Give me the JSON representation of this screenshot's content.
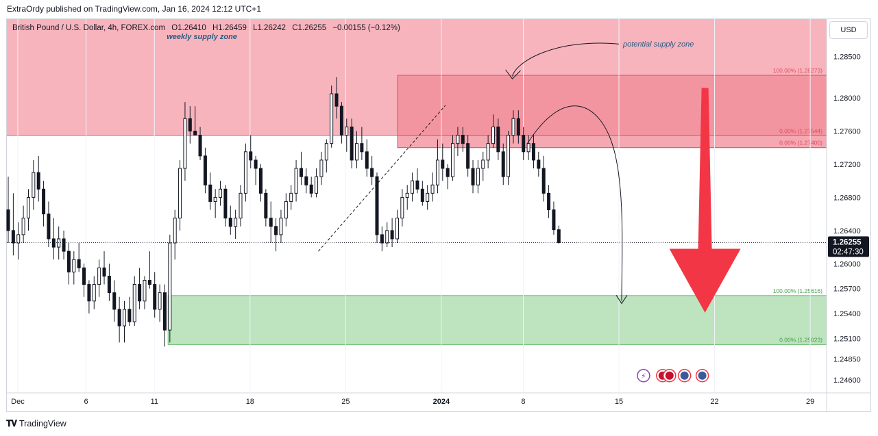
{
  "header": {
    "published_text": "ExtraOrdy published on TradingView.com, Jan 16, 2024 12:12 UTC+1"
  },
  "legend": {
    "symbol": "British Pound / U.S. Dollar, 4h, FOREX.com",
    "open": "O1.26410",
    "high": "H1.26459",
    "low": "L1.26242",
    "close": "C1.26255",
    "change": "−0.00155 (−0.12%)"
  },
  "currency_button": "USD",
  "footer": {
    "brand": "TradingView"
  },
  "chart_data": {
    "type": "candlestick",
    "symbol": "GBPUSD",
    "timeframe": "4h",
    "ylim": [
      1.2445,
      1.2895
    ],
    "y_ticks": [
      "1.28500",
      "1.28000",
      "1.27600",
      "1.27200",
      "1.26800",
      "1.26400",
      "1.26000",
      "1.25700",
      "1.25400",
      "1.25100",
      "1.24850",
      "1.24600"
    ],
    "y_tick_values": [
      1.285,
      1.28,
      1.276,
      1.272,
      1.268,
      1.264,
      1.26,
      1.257,
      1.254,
      1.251,
      1.2485,
      1.246
    ],
    "x_tick_labels": [
      "Dec",
      "6",
      "11",
      "18",
      "25",
      "2024",
      "8",
      "15",
      "22",
      "29"
    ],
    "x_tick_days": [
      1,
      6,
      11,
      18,
      25,
      32,
      38,
      45,
      52,
      59
    ],
    "x_range_days": [
      0.2,
      60.2
    ],
    "current_price": {
      "value": 1.26255,
      "label": "1.26255",
      "countdown": "02:47:30"
    },
    "zones": [
      {
        "name": "weekly supply zone",
        "color": "#f7b4bd",
        "from": 1.2755,
        "to": 1.2905,
        "x_from": 0.2,
        "x_to": 60.2,
        "labels": []
      },
      {
        "name": "potential supply zone",
        "color": "#f28b97",
        "from": 1.274,
        "to": 1.28273,
        "x_from": 28.8,
        "x_to": 60.2,
        "labels": [
          "100.00% (1.28273)",
          "0.00% (1.27544)",
          "0.00% (1.27400)"
        ],
        "label_values": [
          1.28273,
          1.27544,
          1.274
        ]
      },
      {
        "name": "demand zone",
        "color": "#bde3bf",
        "from": 1.25023,
        "to": 1.25616,
        "x_from": 12.0,
        "x_to": 60.2,
        "labels": [
          "100.00% (1.25616)",
          "0.00% (1.25023)"
        ],
        "label_values": [
          1.25616,
          1.25023
        ]
      }
    ],
    "annotations": [
      "weekly supply zone",
      "potential supply zone"
    ],
    "candles": [
      [
        1.2665,
        1.2705,
        1.2625,
        1.264
      ],
      [
        1.264,
        1.2685,
        1.261,
        1.2625
      ],
      [
        1.2625,
        1.265,
        1.2605,
        1.2635
      ],
      [
        1.2635,
        1.267,
        1.2625,
        1.2655
      ],
      [
        1.2655,
        1.269,
        1.264,
        1.268
      ],
      [
        1.268,
        1.2725,
        1.2665,
        1.271
      ],
      [
        1.271,
        1.273,
        1.2675,
        1.269
      ],
      [
        1.269,
        1.27,
        1.2645,
        1.266
      ],
      [
        1.266,
        1.2675,
        1.262,
        1.263
      ],
      [
        1.263,
        1.2655,
        1.2605,
        1.262
      ],
      [
        1.262,
        1.2645,
        1.2605,
        1.263
      ],
      [
        1.263,
        1.264,
        1.2605,
        1.2615
      ],
      [
        1.2615,
        1.2625,
        1.2575,
        1.259
      ],
      [
        1.259,
        1.2615,
        1.2575,
        1.2605
      ],
      [
        1.2605,
        1.2625,
        1.259,
        1.2595
      ],
      [
        1.2595,
        1.26,
        1.256,
        1.2575
      ],
      [
        1.2575,
        1.258,
        1.254,
        1.2555
      ],
      [
        1.2555,
        1.2585,
        1.2545,
        1.2575
      ],
      [
        1.2575,
        1.2605,
        1.256,
        1.2595
      ],
      [
        1.2595,
        1.2615,
        1.2575,
        1.2585
      ],
      [
        1.2585,
        1.26,
        1.2555,
        1.2565
      ],
      [
        1.2565,
        1.258,
        1.253,
        1.2545
      ],
      [
        1.2545,
        1.256,
        1.2505,
        1.2525
      ],
      [
        1.2525,
        1.2555,
        1.2505,
        1.2545
      ],
      [
        1.2545,
        1.256,
        1.2525,
        1.253
      ],
      [
        1.253,
        1.2585,
        1.2525,
        1.2575
      ],
      [
        1.2575,
        1.2595,
        1.2545,
        1.2555
      ],
      [
        1.2555,
        1.2585,
        1.2545,
        1.258
      ],
      [
        1.258,
        1.2615,
        1.257,
        1.2575
      ],
      [
        1.2575,
        1.259,
        1.2535,
        1.2545
      ],
      [
        1.2545,
        1.2575,
        1.253,
        1.2565
      ],
      [
        1.2565,
        1.2575,
        1.25,
        1.252
      ],
      [
        1.252,
        1.2635,
        1.2505,
        1.2625
      ],
      [
        1.2625,
        1.2665,
        1.2605,
        1.2655
      ],
      [
        1.2655,
        1.2725,
        1.264,
        1.2715
      ],
      [
        1.2715,
        1.2795,
        1.27,
        1.2775
      ],
      [
        1.2775,
        1.279,
        1.2745,
        1.276
      ],
      [
        1.276,
        1.279,
        1.2755,
        1.2755
      ],
      [
        1.2755,
        1.2765,
        1.2725,
        1.273
      ],
      [
        1.273,
        1.274,
        1.2685,
        1.2695
      ],
      [
        1.2695,
        1.271,
        1.2665,
        1.2675
      ],
      [
        1.2675,
        1.269,
        1.2655,
        1.268
      ],
      [
        1.268,
        1.27,
        1.267,
        1.269
      ],
      [
        1.269,
        1.2695,
        1.2645,
        1.2655
      ],
      [
        1.2655,
        1.267,
        1.2635,
        1.2645
      ],
      [
        1.2645,
        1.2665,
        1.263,
        1.2655
      ],
      [
        1.2655,
        1.2695,
        1.2645,
        1.2685
      ],
      [
        1.2685,
        1.2745,
        1.2675,
        1.2735
      ],
      [
        1.2735,
        1.2755,
        1.2715,
        1.2725
      ],
      [
        1.2725,
        1.273,
        1.2695,
        1.2715
      ],
      [
        1.2715,
        1.272,
        1.2675,
        1.2685
      ],
      [
        1.2685,
        1.269,
        1.2645,
        1.2655
      ],
      [
        1.2655,
        1.2675,
        1.2625,
        1.2645
      ],
      [
        1.2645,
        1.2655,
        1.2615,
        1.2635
      ],
      [
        1.2635,
        1.2665,
        1.2625,
        1.2655
      ],
      [
        1.2655,
        1.2685,
        1.2645,
        1.2675
      ],
      [
        1.2675,
        1.2695,
        1.2665,
        1.2685
      ],
      [
        1.2685,
        1.2725,
        1.2675,
        1.2715
      ],
      [
        1.2715,
        1.2735,
        1.2695,
        1.2705
      ],
      [
        1.2705,
        1.2715,
        1.2685,
        1.2695
      ],
      [
        1.2695,
        1.2705,
        1.268,
        1.2685
      ],
      [
        1.2685,
        1.2715,
        1.268,
        1.2705
      ],
      [
        1.2705,
        1.2735,
        1.2695,
        1.2725
      ],
      [
        1.2725,
        1.275,
        1.271,
        1.2745
      ],
      [
        1.2745,
        1.2815,
        1.274,
        1.2805
      ],
      [
        1.2805,
        1.2825,
        1.2775,
        1.279
      ],
      [
        1.279,
        1.2795,
        1.2745,
        1.2755
      ],
      [
        1.2755,
        1.2775,
        1.2735,
        1.2765
      ],
      [
        1.2765,
        1.2775,
        1.2715,
        1.2725
      ],
      [
        1.2725,
        1.276,
        1.2715,
        1.2745
      ],
      [
        1.2745,
        1.2765,
        1.2725,
        1.2735
      ],
      [
        1.2735,
        1.275,
        1.2705,
        1.2715
      ],
      [
        1.2715,
        1.273,
        1.2695,
        1.2705
      ],
      [
        1.2705,
        1.271,
        1.2625,
        1.2635
      ],
      [
        1.2635,
        1.2645,
        1.2615,
        1.2625
      ],
      [
        1.2625,
        1.265,
        1.262,
        1.264
      ],
      [
        1.264,
        1.2655,
        1.262,
        1.263
      ],
      [
        1.263,
        1.2665,
        1.2625,
        1.2655
      ],
      [
        1.2655,
        1.269,
        1.2645,
        1.268
      ],
      [
        1.268,
        1.2695,
        1.2665,
        1.2685
      ],
      [
        1.2685,
        1.271,
        1.2675,
        1.27
      ],
      [
        1.27,
        1.2715,
        1.2685,
        1.269
      ],
      [
        1.269,
        1.27,
        1.267,
        1.2675
      ],
      [
        1.2675,
        1.2695,
        1.2665,
        1.2685
      ],
      [
        1.2685,
        1.271,
        1.2675,
        1.2695
      ],
      [
        1.2695,
        1.275,
        1.2685,
        1.2725
      ],
      [
        1.2725,
        1.2745,
        1.27,
        1.2715
      ],
      [
        1.2715,
        1.272,
        1.269,
        1.2705
      ],
      [
        1.2705,
        1.2755,
        1.27,
        1.2745
      ],
      [
        1.2745,
        1.2765,
        1.273,
        1.2755
      ],
      [
        1.2755,
        1.2765,
        1.2735,
        1.2745
      ],
      [
        1.2745,
        1.2755,
        1.2705,
        1.2715
      ],
      [
        1.2715,
        1.2725,
        1.2685,
        1.2695
      ],
      [
        1.2695,
        1.2725,
        1.2685,
        1.2715
      ],
      [
        1.2715,
        1.2735,
        1.27,
        1.2725
      ],
      [
        1.2725,
        1.2755,
        1.2715,
        1.2745
      ],
      [
        1.2745,
        1.278,
        1.274,
        1.2765
      ],
      [
        1.2765,
        1.2775,
        1.2725,
        1.2735
      ],
      [
        1.2735,
        1.2745,
        1.2695,
        1.2705
      ],
      [
        1.2705,
        1.276,
        1.2695,
        1.2755
      ],
      [
        1.2755,
        1.2785,
        1.2745,
        1.2775
      ],
      [
        1.2775,
        1.2785,
        1.2745,
        1.2755
      ],
      [
        1.2755,
        1.2765,
        1.2725,
        1.2735
      ],
      [
        1.2735,
        1.2755,
        1.2725,
        1.2745
      ],
      [
        1.2745,
        1.2755,
        1.2715,
        1.2725
      ],
      [
        1.2725,
        1.2735,
        1.2705,
        1.2715
      ],
      [
        1.2715,
        1.273,
        1.2675,
        1.2685
      ],
      [
        1.2685,
        1.2695,
        1.2655,
        1.2665
      ],
      [
        1.2665,
        1.2675,
        1.2635,
        1.2641
      ],
      [
        1.2641,
        1.2646,
        1.2624,
        1.26255
      ]
    ]
  }
}
